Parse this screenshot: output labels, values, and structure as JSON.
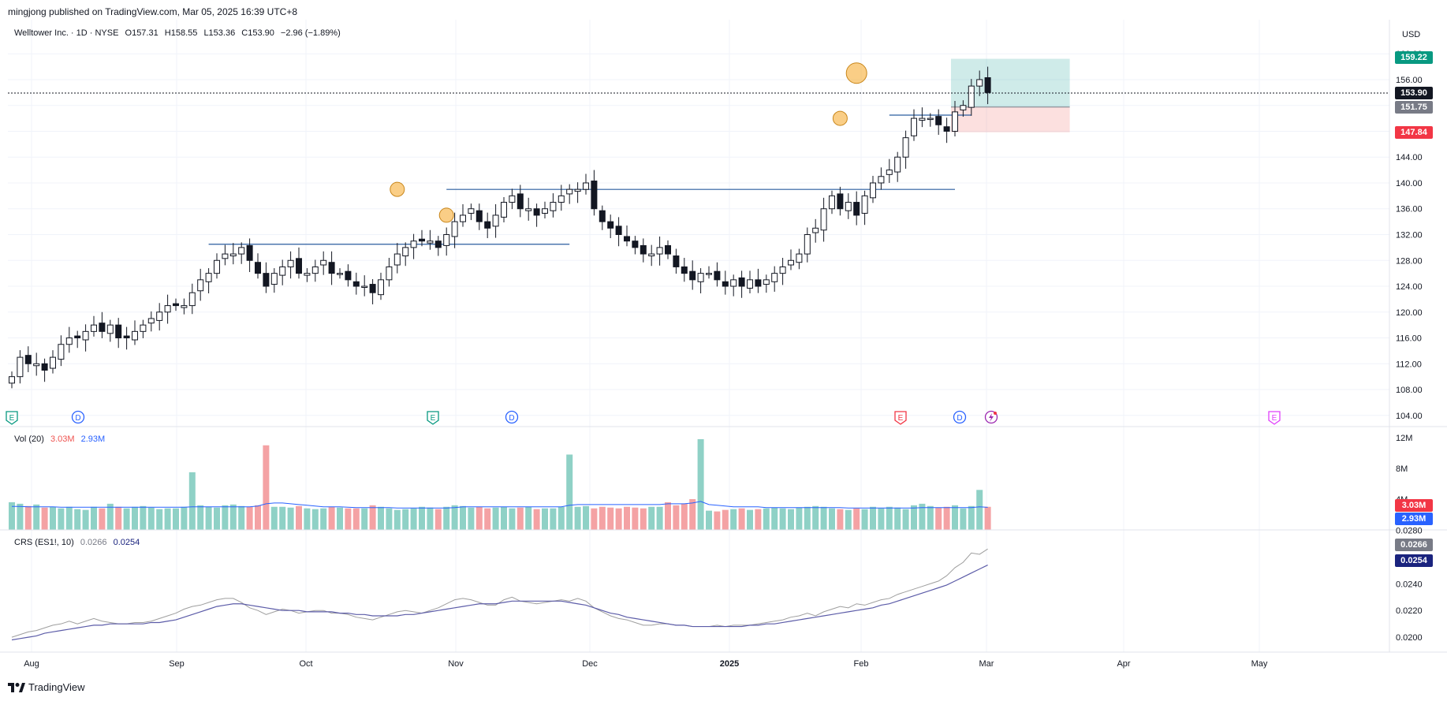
{
  "header": {
    "published": "mingjong published on TradingView.com, Mar 05, 2025 16:39 UTC+8"
  },
  "legend": {
    "symbol": "Welltower Inc. · 1D · NYSE",
    "open": "O157.31",
    "high": "H158.55",
    "low": "L153.36",
    "close": "C153.90",
    "change": "−2.96 (−1.89%)"
  },
  "currency": "USD",
  "volume_label": {
    "title": "Vol (20)",
    "vol": "3.03M",
    "ma": "2.93M"
  },
  "crs_label": {
    "title": "CRS (ES1!, 10)",
    "value1": "0.0266",
    "value2": "0.0254"
  },
  "price_tags": {
    "target": "159.22",
    "last": "153.90",
    "entry": "151.75",
    "stop": "147.84",
    "vol": "3.03M",
    "vol_ma": "2.93M",
    "crs1": "0.0266",
    "crs2": "0.0254"
  },
  "price_axis": [
    "160.00",
    "156.00",
    "152.00",
    "148.00",
    "144.00",
    "140.00",
    "136.00",
    "132.00",
    "128.00",
    "124.00",
    "120.00",
    "116.00",
    "112.00",
    "108.00",
    "104.00"
  ],
  "volume_axis": [
    "12M",
    "8M",
    "4M"
  ],
  "crs_axis": [
    "0.0280",
    "0.0260",
    "0.0240",
    "0.0220",
    "0.0200"
  ],
  "time_axis": [
    "Aug",
    "Sep",
    "Oct",
    "Nov",
    "Dec",
    "2025",
    "Feb",
    "Mar",
    "Apr",
    "May"
  ],
  "event_markers": [
    "E",
    "D",
    "E",
    "D",
    "E",
    "D",
    "E"
  ],
  "footer": {
    "logo_text": "TradingView"
  },
  "colors": {
    "up": "#26a69a",
    "down": "#ef5350",
    "blue_line": "#2962ff",
    "target_zone": "#26a69a",
    "stop_zone": "#ef5350"
  },
  "chart_data": {
    "type": "candlestick",
    "ylim": [
      103,
      161
    ],
    "closes": [
      110,
      113,
      112,
      112,
      111,
      113,
      115,
      116,
      116,
      117,
      118,
      117,
      118,
      116,
      116,
      117,
      118,
      119,
      120,
      121,
      121,
      121,
      123,
      125,
      126,
      128,
      129,
      129,
      130,
      128,
      126,
      124,
      126,
      127,
      128,
      126,
      126,
      127,
      128,
      126,
      126,
      125,
      124,
      124,
      123,
      125,
      127,
      129,
      130,
      131,
      131,
      131,
      130,
      132,
      134,
      135,
      136,
      134,
      133,
      135,
      137,
      138,
      136,
      136,
      135,
      136,
      137,
      138,
      139,
      139,
      140,
      136,
      134,
      133,
      132,
      131,
      130,
      129,
      129,
      130,
      129,
      127,
      126,
      125,
      126,
      126,
      125,
      124,
      125,
      124,
      125,
      124,
      125,
      126,
      127,
      128,
      129,
      132,
      133,
      136,
      138,
      136,
      137,
      135,
      138,
      140,
      141,
      142,
      144,
      147,
      150,
      150,
      150,
      149,
      148,
      151,
      152,
      155,
      156,
      154
    ],
    "volume": {
      "ylim": [
        0,
        12
      ],
      "values": [
        3.6,
        3.4,
        3.1,
        3.3,
        2.9,
        3.0,
        2.8,
        3.0,
        2.7,
        2.6,
        3.0,
        2.8,
        3.4,
        3.0,
        2.8,
        3.0,
        3.1,
        2.9,
        2.7,
        2.8,
        2.8,
        3.0,
        7.5,
        3.2,
        3.0,
        2.9,
        3.2,
        3.3,
        3.1,
        3.0,
        3.2,
        11.0,
        3.0,
        3.0,
        2.9,
        3.1,
        2.8,
        2.7,
        2.8,
        3.0,
        2.9,
        2.8,
        2.8,
        2.8,
        3.2,
        3.0,
        2.8,
        2.6,
        2.7,
        2.8,
        3.0,
        2.9,
        2.7,
        3.0,
        3.2,
        3.1,
        2.9,
        3.0,
        2.8,
        2.9,
        3.0,
        2.8,
        2.9,
        3.0,
        2.7,
        2.8,
        2.8,
        3.0,
        9.8,
        3.0,
        3.1,
        2.8,
        3.0,
        2.9,
        2.8,
        3.0,
        2.9,
        2.8,
        3.0,
        3.0,
        3.6,
        3.2,
        3.4,
        4.0,
        11.8,
        2.5,
        2.4,
        2.6,
        2.7,
        2.8,
        2.6,
        2.7,
        2.8,
        2.9,
        2.8,
        2.7,
        2.9,
        3.0,
        3.1,
        3.0,
        2.8,
        2.7,
        2.6,
        2.8,
        2.7,
        3.0,
        2.8,
        3.0,
        2.9,
        2.7,
        3.2,
        3.4,
        3.1,
        2.9,
        3.0,
        3.2,
        2.8,
        3.1,
        5.2,
        3.0
      ],
      "ma": [
        3.05,
        3.05,
        3.0,
        3.0,
        3.0,
        3.0,
        2.95,
        2.95,
        2.95,
        2.95,
        2.95,
        2.95,
        2.95,
        2.95,
        2.95,
        2.95,
        2.95,
        2.95,
        2.95,
        2.95,
        2.95,
        2.95,
        3.0,
        3.0,
        3.0,
        3.0,
        3.0,
        3.0,
        3.0,
        3.0,
        3.1,
        3.4,
        3.5,
        3.5,
        3.4,
        3.3,
        3.2,
        3.1,
        3.0,
        3.0,
        3.0,
        2.95,
        2.9,
        2.9,
        2.9,
        2.9,
        2.9,
        2.85,
        2.85,
        2.85,
        2.85,
        2.85,
        2.85,
        2.85,
        2.9,
        3.0,
        3.0,
        3.0,
        3.0,
        3.0,
        3.0,
        3.0,
        3.0,
        3.0,
        3.0,
        3.0,
        3.0,
        3.0,
        3.2,
        3.3,
        3.3,
        3.3,
        3.3,
        3.3,
        3.3,
        3.3,
        3.3,
        3.3,
        3.3,
        3.3,
        3.4,
        3.4,
        3.4,
        3.5,
        3.7,
        3.3,
        3.2,
        3.1,
        3.0,
        3.0,
        3.0,
        3.0,
        2.9,
        2.9,
        2.9,
        2.9,
        2.9,
        2.9,
        2.9,
        2.9,
        2.9,
        2.9,
        2.85,
        2.85,
        2.85,
        2.85,
        2.85,
        2.85,
        2.85,
        2.85,
        2.85,
        2.9,
        2.9,
        2.9,
        2.9,
        2.9,
        2.9,
        2.9,
        3.0,
        2.93
      ]
    },
    "crs": {
      "ylim": [
        0.0193,
        0.0272
      ],
      "raw": [
        0.02,
        0.0202,
        0.0204,
        0.0205,
        0.0207,
        0.0209,
        0.021,
        0.0212,
        0.021,
        0.0212,
        0.0214,
        0.0212,
        0.0211,
        0.021,
        0.021,
        0.0211,
        0.0211,
        0.0212,
        0.0214,
        0.0216,
        0.0218,
        0.0221,
        0.0223,
        0.0224,
        0.0226,
        0.0228,
        0.0229,
        0.0229,
        0.0226,
        0.0222,
        0.022,
        0.0217,
        0.0219,
        0.0221,
        0.022,
        0.0218,
        0.0219,
        0.022,
        0.022,
        0.0218,
        0.0218,
        0.0217,
        0.0215,
        0.0214,
        0.0213,
        0.0215,
        0.0217,
        0.0219,
        0.022,
        0.0219,
        0.0218,
        0.022,
        0.0222,
        0.0225,
        0.0228,
        0.0229,
        0.0228,
        0.0226,
        0.0224,
        0.0224,
        0.0228,
        0.023,
        0.0227,
        0.0226,
        0.0225,
        0.0226,
        0.0227,
        0.0228,
        0.0227,
        0.0229,
        0.0227,
        0.0222,
        0.0219,
        0.0216,
        0.0214,
        0.0213,
        0.0211,
        0.0209,
        0.0209,
        0.021,
        0.021,
        0.0209,
        0.0209,
        0.0208,
        0.0208,
        0.0208,
        0.0209,
        0.0208,
        0.0209,
        0.0209,
        0.0209,
        0.021,
        0.0211,
        0.0212,
        0.0213,
        0.0215,
        0.0216,
        0.0218,
        0.0216,
        0.0219,
        0.0221,
        0.0223,
        0.0222,
        0.0225,
        0.0224,
        0.0226,
        0.0228,
        0.0229,
        0.0232,
        0.0234,
        0.0236,
        0.0238,
        0.024,
        0.0242,
        0.0246,
        0.0252,
        0.0256,
        0.0263,
        0.0262,
        0.0266
      ],
      "avg": [
        0.0198,
        0.0199,
        0.02,
        0.0201,
        0.0203,
        0.0204,
        0.0205,
        0.0206,
        0.0207,
        0.0208,
        0.0209,
        0.0209,
        0.021,
        0.021,
        0.021,
        0.021,
        0.021,
        0.0211,
        0.0211,
        0.0212,
        0.0213,
        0.0215,
        0.0217,
        0.0219,
        0.0221,
        0.0223,
        0.0224,
        0.0225,
        0.0225,
        0.0224,
        0.0223,
        0.0222,
        0.0221,
        0.022,
        0.022,
        0.022,
        0.0219,
        0.0219,
        0.0219,
        0.0219,
        0.0218,
        0.0218,
        0.0217,
        0.0217,
        0.0216,
        0.0216,
        0.0216,
        0.0216,
        0.0217,
        0.0217,
        0.0218,
        0.0219,
        0.022,
        0.0221,
        0.0222,
        0.0223,
        0.0224,
        0.0225,
        0.0225,
        0.0225,
        0.0226,
        0.0227,
        0.0227,
        0.0227,
        0.0227,
        0.0227,
        0.0227,
        0.0227,
        0.0226,
        0.0225,
        0.0224,
        0.0222,
        0.022,
        0.0218,
        0.0217,
        0.0215,
        0.0214,
        0.0213,
        0.0212,
        0.0211,
        0.021,
        0.0209,
        0.0209,
        0.0208,
        0.0208,
        0.0208,
        0.0208,
        0.0208,
        0.0208,
        0.0208,
        0.0209,
        0.0209,
        0.021,
        0.021,
        0.0211,
        0.0212,
        0.0213,
        0.0214,
        0.0215,
        0.0216,
        0.0217,
        0.0218,
        0.0219,
        0.022,
        0.0221,
        0.0222,
        0.0224,
        0.0225,
        0.0227,
        0.0229,
        0.0231,
        0.0233,
        0.0235,
        0.0237,
        0.0239,
        0.0242,
        0.0245,
        0.0248,
        0.0251,
        0.0254
      ]
    },
    "horizontal_levels": [
      {
        "price": 130.5,
        "from_bar": 24,
        "to_bar": 68
      },
      {
        "price": 139,
        "from_bar": 53,
        "to_bar": 115
      },
      {
        "price": 150.5,
        "from_bar": 107,
        "to_bar": 117
      }
    ],
    "position": {
      "target": 159.22,
      "entry": 151.75,
      "stop": 147.84,
      "from_bar": 115,
      "to_bar": 129
    }
  }
}
